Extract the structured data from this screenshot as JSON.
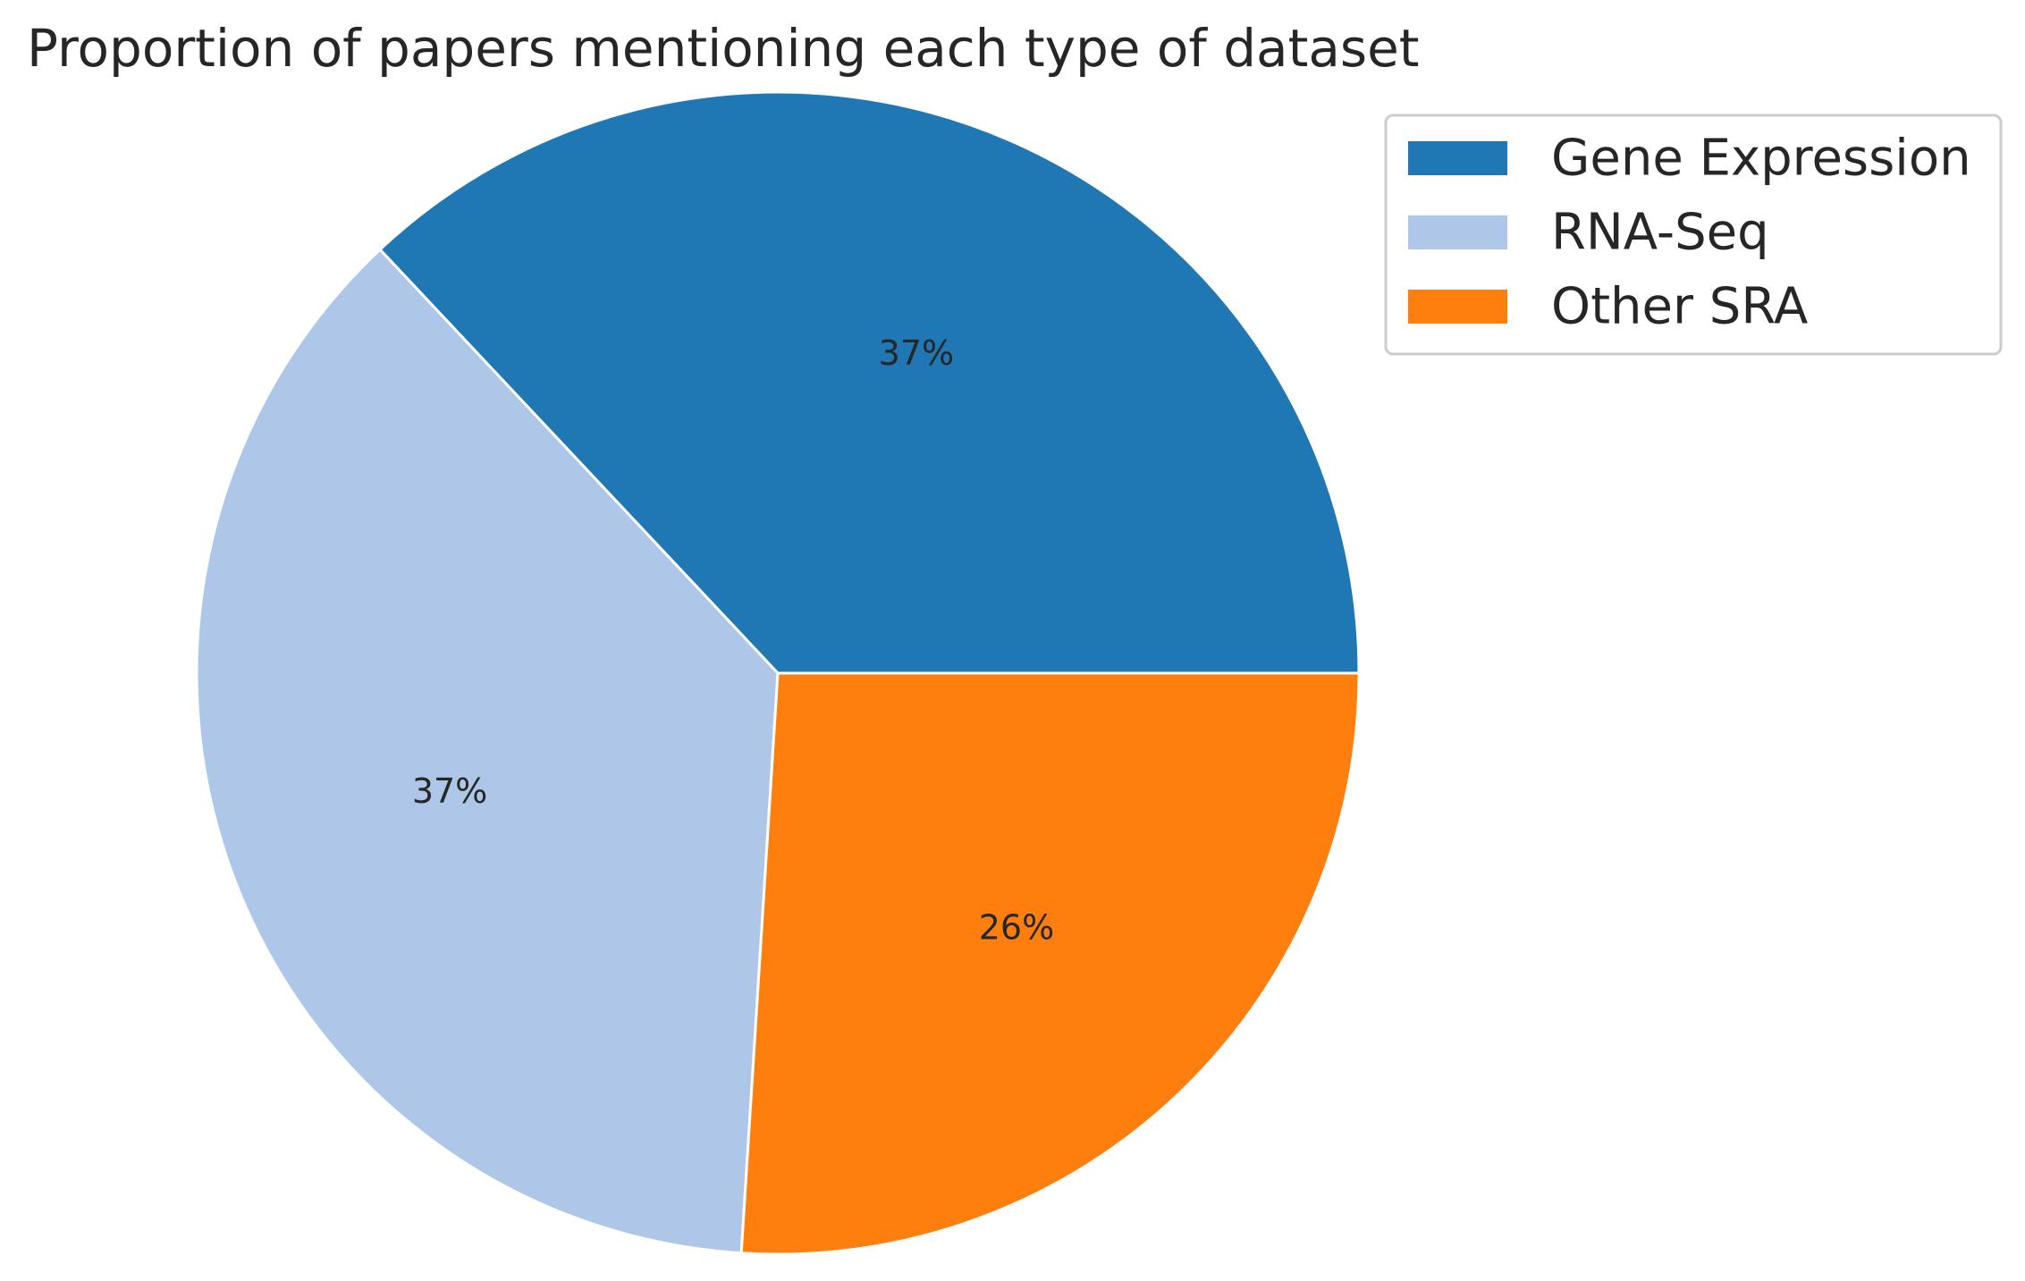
{
  "chart_data": {
    "type": "pie",
    "title": "Proportion of papers mentioning each type of dataset",
    "slices": [
      {
        "label": "Gene Expression",
        "value": 37,
        "display": "37%",
        "color": "#1f77b4"
      },
      {
        "label": "RNA-Seq",
        "value": 37,
        "display": "37%",
        "color": "#aec7e8"
      },
      {
        "label": "Other SRA",
        "value": 26,
        "display": "26%",
        "color": "#ff7f0e"
      }
    ],
    "start_angle_deg": 0,
    "direction": "counterclockwise",
    "legend": {
      "position": "upper-right, outside plot",
      "entries": [
        "Gene Expression",
        "RNA-Seq",
        "Other SRA"
      ]
    },
    "slice_edge_color": "#ffffff"
  }
}
